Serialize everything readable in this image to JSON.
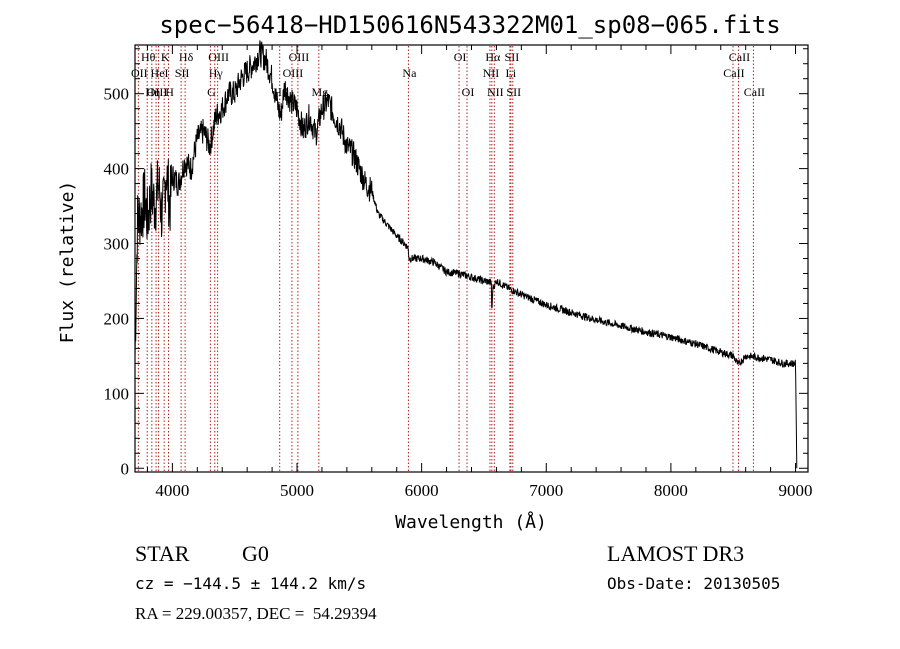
{
  "chart_data": {
    "type": "line",
    "title": "spec−56418−HD150616N543322M01_sp08−065.fits",
    "xlabel": "Wavelength (Å)",
    "ylabel": "Flux (relative)",
    "xlim": [
      3700,
      9100
    ],
    "ylim": [
      -5,
      565
    ],
    "x_ticks": [
      4000,
      5000,
      6000,
      7000,
      8000,
      9000
    ],
    "y_ticks": [
      0,
      100,
      200,
      300,
      400,
      500
    ],
    "series": [
      {
        "name": "spectrum",
        "x": [
          3700,
          3720,
          3750,
          3780,
          3800,
          3830,
          3860,
          3890,
          3920,
          3950,
          3980,
          4000,
          4050,
          4100,
          4150,
          4200,
          4250,
          4300,
          4350,
          4400,
          4450,
          4500,
          4550,
          4600,
          4650,
          4700,
          4750,
          4800,
          4850,
          4870,
          4900,
          4950,
          5000,
          5050,
          5100,
          5150,
          5200,
          5250,
          5300,
          5350,
          5400,
          5450,
          5500,
          5550,
          5600,
          5650,
          5700,
          5800,
          5890,
          5900,
          6000,
          6100,
          6200,
          6300,
          6400,
          6500,
          6560,
          6563,
          6570,
          6600,
          6700,
          6800,
          6900,
          7000,
          7200,
          7400,
          7600,
          7800,
          8000,
          8200,
          8400,
          8500,
          8540,
          8600,
          8700,
          8800,
          8900,
          9000,
          9010
        ],
        "y": [
          150,
          330,
          340,
          360,
          330,
          370,
          350,
          380,
          330,
          400,
          350,
          390,
          380,
          410,
          400,
          440,
          450,
          430,
          470,
          480,
          500,
          500,
          520,
          530,
          540,
          555,
          545,
          520,
          480,
          470,
          510,
          490,
          480,
          450,
          470,
          445,
          480,
          490,
          470,
          455,
          430,
          420,
          400,
          380,
          370,
          340,
          330,
          310,
          295,
          280,
          280,
          275,
          262,
          260,
          255,
          250,
          248,
          200,
          240,
          250,
          240,
          232,
          225,
          218,
          208,
          198,
          190,
          182,
          175,
          166,
          155,
          150,
          138,
          150,
          148,
          145,
          140,
          140,
          0
        ]
      }
    ],
    "spectral_lines": [
      {
        "label": "Hθ",
        "wavelength": 3798,
        "row": 1
      },
      {
        "label": "K",
        "wavelength": 3934,
        "row": 1
      },
      {
        "label": "Hδ",
        "wavelength": 4102,
        "row": 1
      },
      {
        "label": "OII",
        "wavelength": 3727,
        "row": 2
      },
      {
        "label": "HeI",
        "wavelength": 3889,
        "row": 2
      },
      {
        "label": "SII",
        "wavelength": 4070,
        "row": 2
      },
      {
        "label": "OIII",
        "wavelength": 3869,
        "row": 3
      },
      {
        "label": "Hη",
        "wavelength": 3835,
        "row": 3
      },
      {
        "label": "H",
        "wavelength": 3969,
        "row": 3
      },
      {
        "label": "OIII",
        "wavelength": 4363,
        "row": 1
      },
      {
        "label": "Hγ",
        "wavelength": 4340,
        "row": 2
      },
      {
        "label": "G",
        "wavelength": 4305,
        "row": 3
      },
      {
        "label": "OIII",
        "wavelength": 5007,
        "row": 1
      },
      {
        "label": "OIII",
        "wavelength": 4959,
        "row": 2
      },
      {
        "label": "Hβ",
        "wavelength": 4861,
        "row": 3
      },
      {
        "label": "Mg",
        "wavelength": 5175,
        "row": 3
      },
      {
        "label": "Na",
        "wavelength": 5894,
        "row": 2
      },
      {
        "label": "OI",
        "wavelength": 6300,
        "row": 1
      },
      {
        "label": "OI",
        "wavelength": 6364,
        "row": 3
      },
      {
        "label": "Hα",
        "wavelength": 6563,
        "row": 1
      },
      {
        "label": "SII",
        "wavelength": 6716,
        "row": 1
      },
      {
        "label": "NII",
        "wavelength": 6548,
        "row": 2
      },
      {
        "label": "Li",
        "wavelength": 6708,
        "row": 2
      },
      {
        "label": "NII",
        "wavelength": 6583,
        "row": 3
      },
      {
        "label": "SII",
        "wavelength": 6731,
        "row": 3
      },
      {
        "label": "CaII",
        "wavelength": 8542,
        "row": 1
      },
      {
        "label": "CaII",
        "wavelength": 8498,
        "row": 2
      },
      {
        "label": "CaII",
        "wavelength": 8662,
        "row": 3
      }
    ],
    "line_color": "#b22222"
  },
  "info": {
    "class": "STAR",
    "subclass": "G0",
    "cz_text": "cz = −144.5 ± 144.2 km/s",
    "coords_text": "RA = 229.00357, DEC =  54.29394",
    "survey": "LAMOST DR3",
    "obs_date": "Obs-Date: 20130505"
  }
}
